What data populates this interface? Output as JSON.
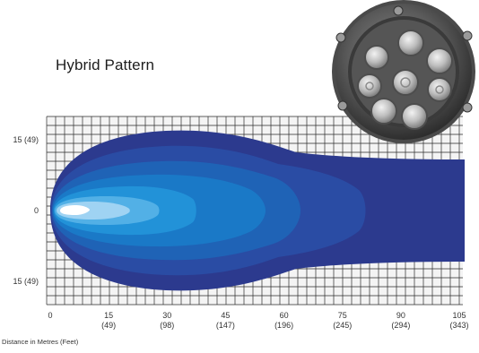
{
  "title": "Hybrid Pattern",
  "x_axis": {
    "label": "Distance in Metres (Feet)",
    "ticks": [
      {
        "value": 0,
        "label": "0",
        "sub": ""
      },
      {
        "value": 15,
        "label": "15",
        "sub": "(49)"
      },
      {
        "value": 30,
        "label": "30",
        "sub": "(98)"
      },
      {
        "value": 45,
        "label": "45",
        "sub": "(147)"
      },
      {
        "value": 60,
        "label": "60",
        "sub": "(196)"
      },
      {
        "value": 75,
        "label": "75",
        "sub": "(245)"
      },
      {
        "value": 90,
        "label": "90",
        "sub": "(294)"
      },
      {
        "value": 105,
        "label": "105",
        "sub": "(343)"
      }
    ],
    "range": [
      0,
      105
    ]
  },
  "y_axis": {
    "ticks": [
      {
        "value": 15,
        "label": "15 (49)"
      },
      {
        "value": 0,
        "label": "0"
      },
      {
        "value": -15,
        "label": "15 (49)"
      }
    ]
  },
  "colors": {
    "grid": "#2a2a2a",
    "grid_bg": "#f4f4f4",
    "zones": [
      "#2c3a8e",
      "#2a4ca4",
      "#1f63b6",
      "#1a79c7",
      "#2292d8",
      "#52b0e6",
      "#9fd3f3",
      "#ffffff"
    ]
  },
  "product_image": "round LED work lamp with eight lenses"
}
